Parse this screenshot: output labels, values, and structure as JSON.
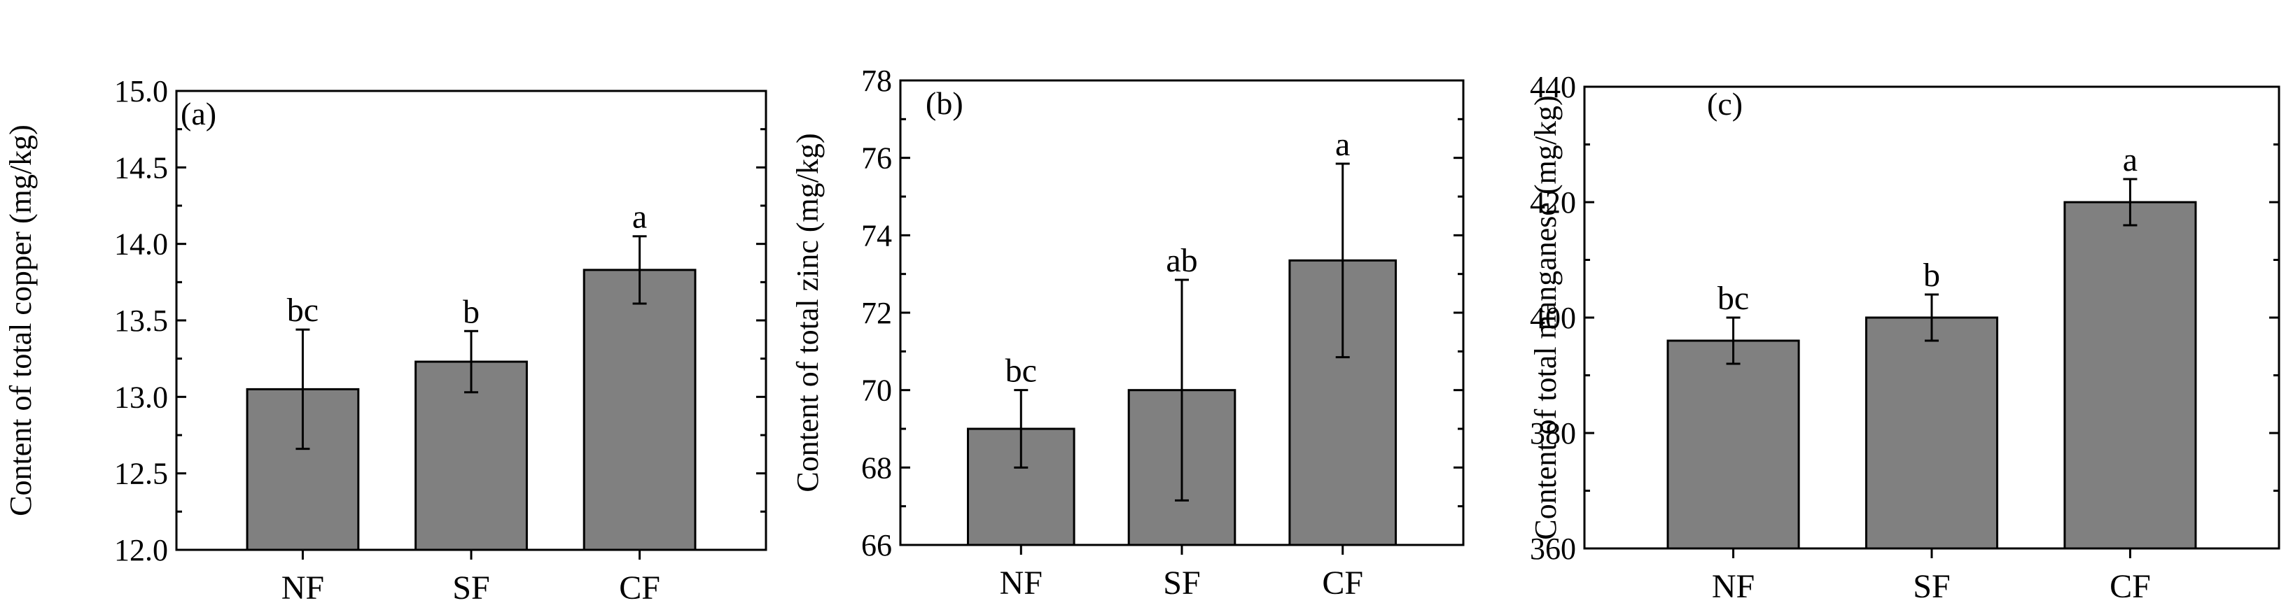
{
  "chart_data": [
    {
      "type": "bar",
      "panel_label": "(a)",
      "ylabel": "Content of total copper (mg/kg)",
      "categories": [
        "NF",
        "SF",
        "CF"
      ],
      "values": [
        13.05,
        13.23,
        13.83
      ],
      "errors": [
        0.39,
        0.2,
        0.22
      ],
      "significance": [
        "bc",
        "b",
        "a"
      ],
      "ylim": [
        12.0,
        15.0
      ],
      "yticks": [
        12.0,
        12.5,
        13.0,
        13.5,
        14.0,
        14.5,
        15.0
      ],
      "ytick_labels": [
        "12.0",
        "12.5",
        "13.0",
        "13.5",
        "14.0",
        "14.5",
        "15.0"
      ],
      "bar_color": "#808080",
      "grid": false
    },
    {
      "type": "bar",
      "panel_label": "(b)",
      "ylabel": "Content of total zinc (mg/kg)",
      "categories": [
        "NF",
        "SF",
        "CF"
      ],
      "values": [
        69.0,
        70.0,
        73.35
      ],
      "errors": [
        1.0,
        2.85,
        2.5
      ],
      "significance": [
        "bc",
        "ab",
        "a"
      ],
      "ylim": [
        66,
        78
      ],
      "yticks": [
        66,
        68,
        70,
        72,
        74,
        76,
        78
      ],
      "ytick_labels": [
        "66",
        "68",
        "70",
        "72",
        "74",
        "76",
        "78"
      ],
      "bar_color": "#808080",
      "grid": false
    },
    {
      "type": "bar",
      "panel_label": "(c)",
      "ylabel": "Content of total manganese (mg/kg)",
      "categories": [
        "NF",
        "SF",
        "CF"
      ],
      "values": [
        396,
        400,
        420
      ],
      "errors": [
        4,
        4,
        4
      ],
      "significance": [
        "bc",
        "b",
        "a"
      ],
      "ylim": [
        360,
        440
      ],
      "yticks": [
        360,
        380,
        400,
        420,
        440
      ],
      "ytick_labels": [
        "360",
        "380",
        "400",
        "420",
        "440"
      ],
      "bar_color": "#808080",
      "grid": false
    }
  ]
}
